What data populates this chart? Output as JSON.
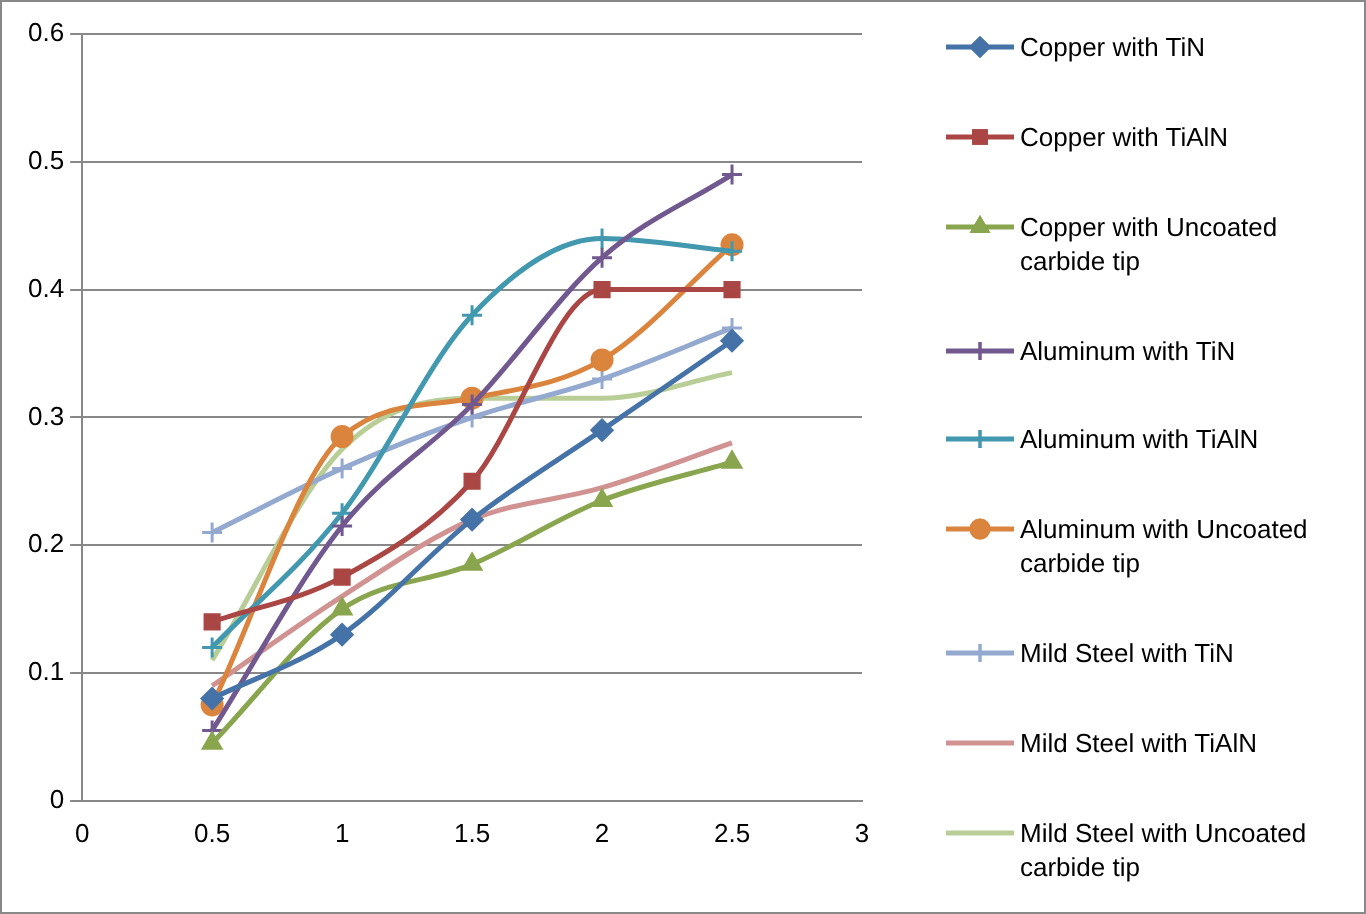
{
  "chart_data": {
    "type": "line",
    "x": [
      0.5,
      1,
      1.5,
      2,
      2.5
    ],
    "xlim": [
      0,
      3
    ],
    "xticks": [
      0,
      0.5,
      1,
      1.5,
      2,
      2.5,
      3
    ],
    "ylim": [
      0,
      0.6
    ],
    "yticks": [
      0,
      0.1,
      0.2,
      0.3,
      0.4,
      0.5,
      0.6
    ],
    "grid": "y",
    "legend": "right",
    "series": [
      {
        "name": "Copper with TiN",
        "color": "#4572a7",
        "marker": "diamond",
        "values": [
          0.08,
          0.13,
          0.22,
          0.29,
          0.36
        ]
      },
      {
        "name": "Copper with TiAlN",
        "color": "#aa4643",
        "marker": "square",
        "values": [
          0.14,
          0.175,
          0.25,
          0.4,
          0.4
        ]
      },
      {
        "name": "Copper with Uncoated carbide tip",
        "color": "#89a54e",
        "marker": "triangle",
        "values": [
          0.045,
          0.15,
          0.185,
          0.235,
          0.265
        ]
      },
      {
        "name": "Aluminum with TiN",
        "color": "#71588f",
        "marker": "cross",
        "values": [
          0.055,
          0.215,
          0.31,
          0.425,
          0.49
        ]
      },
      {
        "name": "Aluminum with TiAlN",
        "color": "#4198af",
        "marker": "cross",
        "values": [
          0.12,
          0.225,
          0.38,
          0.44,
          0.43
        ]
      },
      {
        "name": "Aluminum with Uncoated carbide tip",
        "color": "#db843d",
        "marker": "circle",
        "values": [
          0.075,
          0.285,
          0.315,
          0.345,
          0.435
        ]
      },
      {
        "name": "Mild Steel with TiN",
        "color": "#93a9cf",
        "marker": "cross",
        "values": [
          0.21,
          0.26,
          0.3,
          0.33,
          0.37
        ]
      },
      {
        "name": "Mild Steel with TiAlN",
        "color": "#d19392",
        "marker": "none",
        "values": [
          0.09,
          0.16,
          0.22,
          0.245,
          0.28
        ]
      },
      {
        "name": "Mild Steel with Uncoated carbide tip",
        "color": "#b9cd96",
        "marker": "none",
        "values": [
          0.11,
          0.275,
          0.315,
          0.315,
          0.335
        ]
      }
    ]
  }
}
